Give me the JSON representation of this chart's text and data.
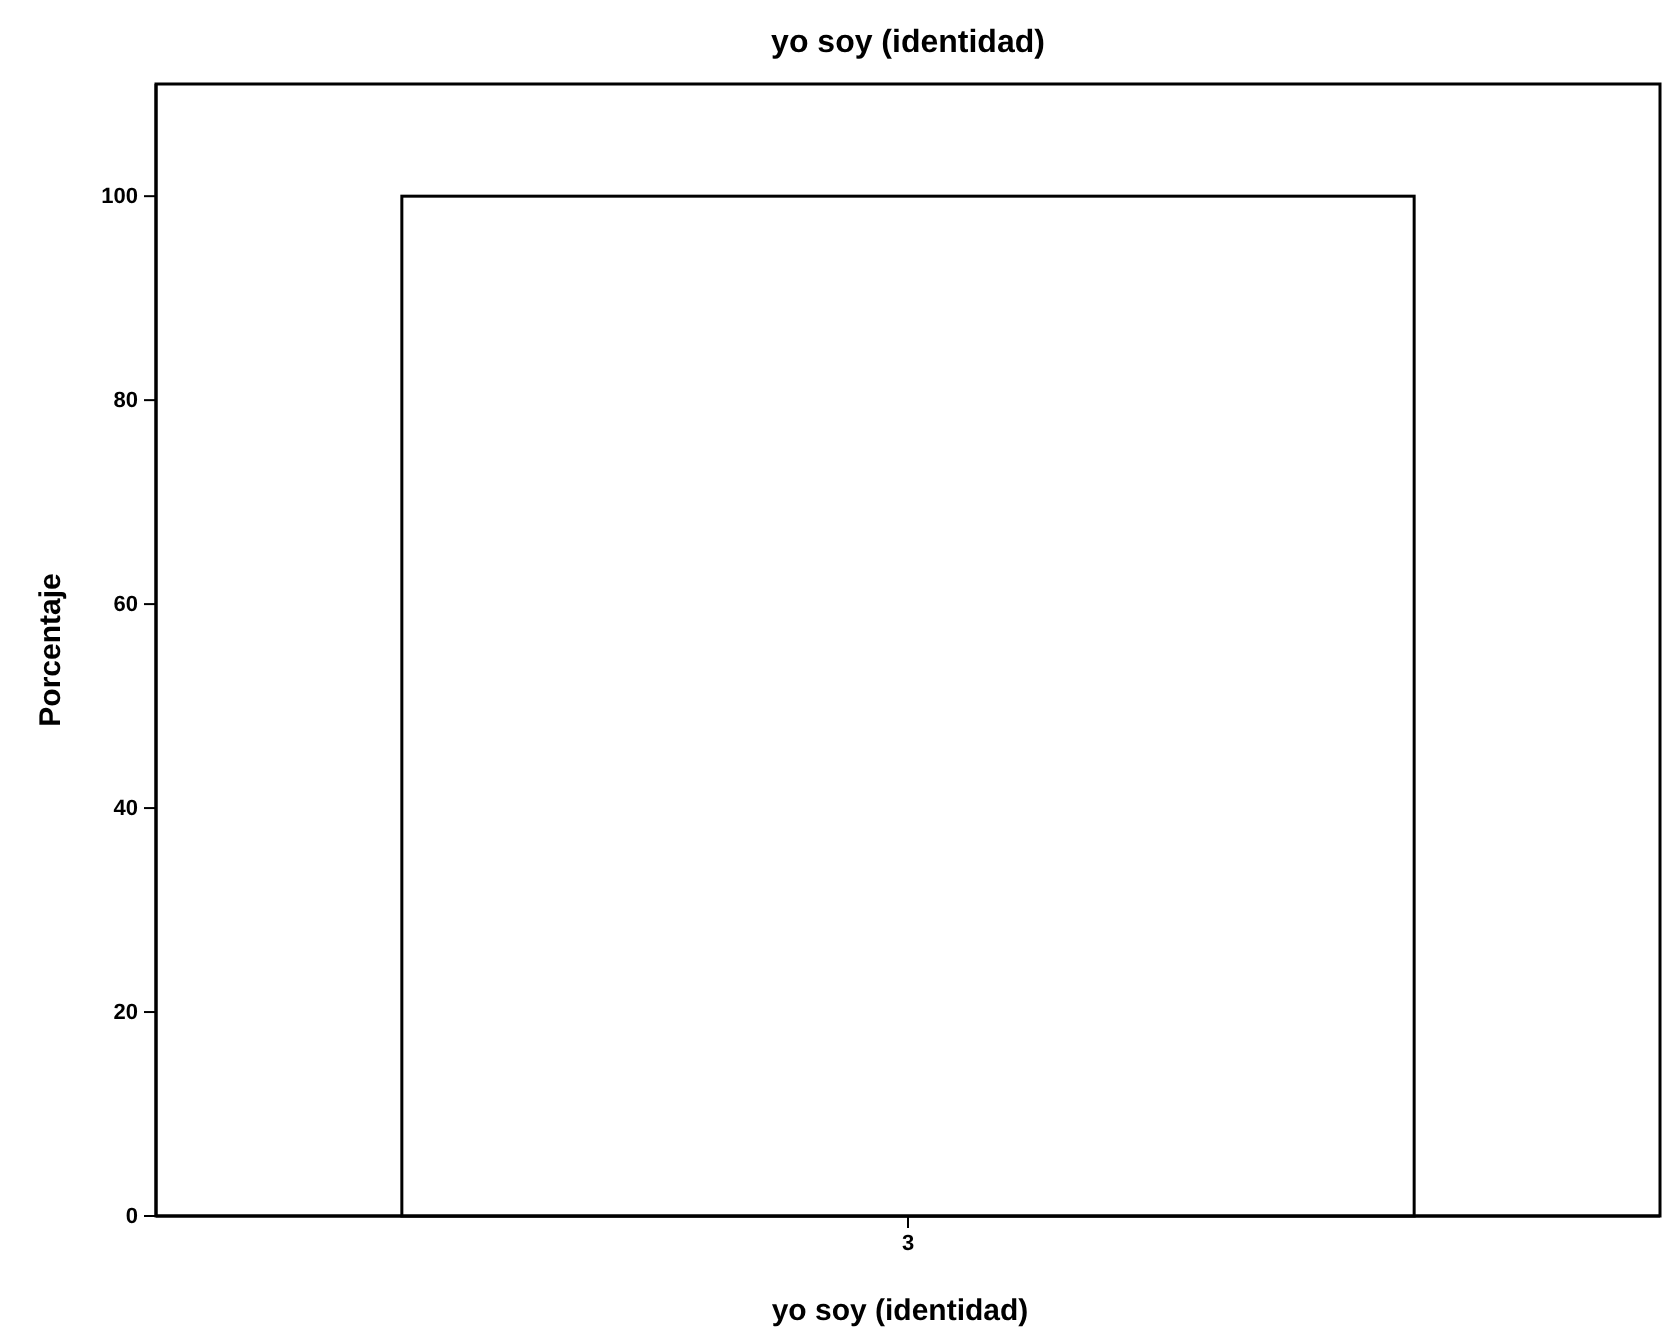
{
  "chart_data": {
    "type": "bar",
    "title": "yo soy (identidad)",
    "xlabel": "yo soy (identidad)",
    "ylabel": "Porcentaje",
    "categories": [
      "3"
    ],
    "values": [
      100
    ],
    "color": "#ffffff",
    "ylim": [
      0,
      111
    ],
    "yticks": [
      0,
      20,
      40,
      60,
      80,
      100
    ],
    "grid": false
  }
}
